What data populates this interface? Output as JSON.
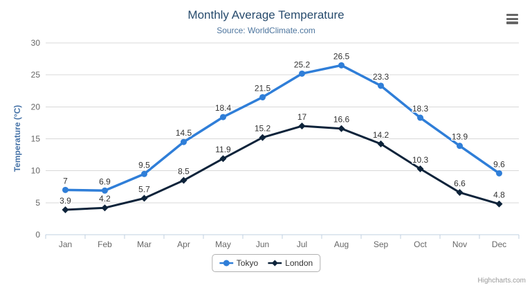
{
  "chart_data": {
    "type": "line",
    "title": "Monthly Average Temperature",
    "subtitle": "Source: WorldClimate.com",
    "categories": [
      "Jan",
      "Feb",
      "Mar",
      "Apr",
      "May",
      "Jun",
      "Jul",
      "Aug",
      "Sep",
      "Oct",
      "Nov",
      "Dec"
    ],
    "series": [
      {
        "name": "Tokyo",
        "color": "#2f7ed8",
        "marker": "circle",
        "line_width": 3.5,
        "values": [
          7,
          6.9,
          9.5,
          14.5,
          18.4,
          21.5,
          25.2,
          26.5,
          23.3,
          18.3,
          13.9,
          9.6
        ]
      },
      {
        "name": "London",
        "color": "#0d233a",
        "marker": "diamond",
        "line_width": 3,
        "values": [
          3.9,
          4.2,
          5.7,
          8.5,
          11.9,
          15.2,
          17,
          16.6,
          14.2,
          10.3,
          6.6,
          4.8
        ]
      }
    ],
    "xlabel": "",
    "ylabel": "Temperature (°C)",
    "ylim": [
      0,
      30
    ],
    "yticks": [
      0,
      5,
      10,
      15,
      20,
      25,
      30
    ],
    "grid": true,
    "legend_position": "bottom-center",
    "data_labels": true
  },
  "colors": {
    "grid": "#d8d8d8",
    "axis_line": "#c0d0e0",
    "tick": "#c0d0e0",
    "axis_label": "#666666",
    "data_label": "#333333",
    "title": "#274b6d",
    "subtitle": "#4d759e",
    "y_axis_title": "#4572a7",
    "legend_border": "#b0b0b0",
    "credits": "#999999",
    "menu_icon": "#666666"
  },
  "icons": {
    "context_menu": "hamburger-menu-icon"
  },
  "credits": "Highcharts.com"
}
